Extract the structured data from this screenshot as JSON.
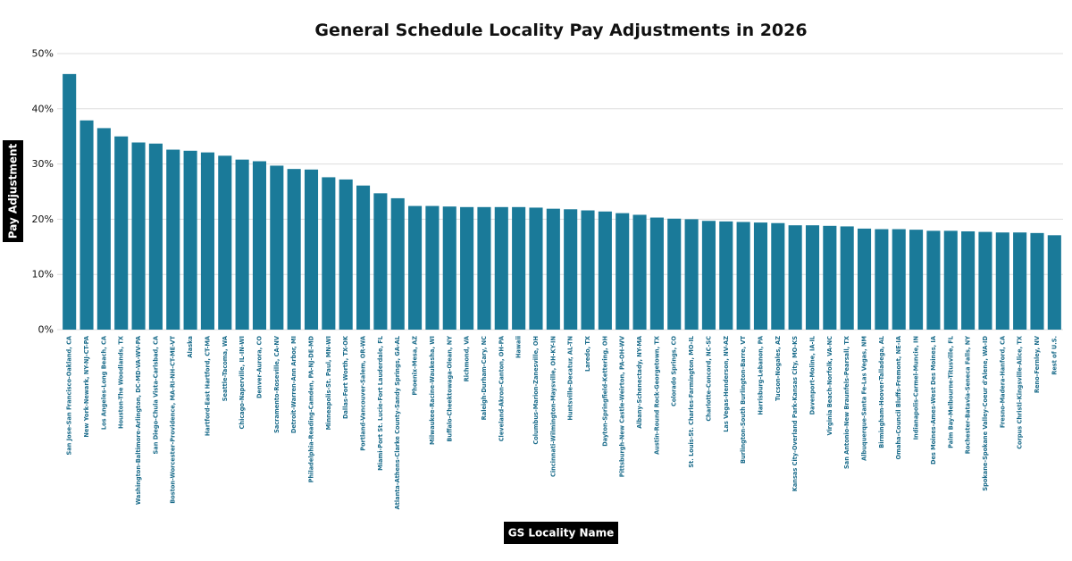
{
  "chart_data": {
    "type": "bar",
    "title": "General Schedule Locality Pay Adjustments in 2026",
    "xlabel": "GS Locality Name",
    "ylabel": "Pay Adjustment",
    "ylim": [
      0,
      50
    ],
    "yticks": [
      0,
      10,
      20,
      30,
      40,
      50
    ],
    "ytick_format": "{v}%",
    "grid": true,
    "colors": {
      "bar": "#1a7a99",
      "tick_label": "#1a6b8a",
      "grid": "#dddddd",
      "label_bg": "#000000"
    },
    "categories": [
      "San Jose-San Francisco-Oakland, CA",
      "New York-Newark, NY-NJ-CT-PA",
      "Los Angeles-Long Beach, CA",
      "Houston-The Woodlands, TX",
      "Washington-Baltimore-Arlington, DC-MD-VA-WV-PA",
      "San Diego-Chula Vista-Carlsbad, CA",
      "Boston-Worcester-Providence, MA-RI-NH-CT-ME-VT",
      "Alaska",
      "Hartford-East Hartford, CT-MA",
      "Seattle-Tacoma, WA",
      "Chicago-Naperville, IL-IN-WI",
      "Denver-Aurora, CO",
      "Sacramento-Roseville, CA-NV",
      "Detroit-Warren-Ann Arbor, MI",
      "Philadelphia-Reading-Camden, PA-NJ-DE-MD",
      "Minneapolis-St. Paul, MN-WI",
      "Dallas-Fort Worth, TX-OK",
      "Portland-Vancouver-Salem, OR-WA",
      "Miami-Port St. Lucie-Fort Lauderdale, FL",
      "Atlanta-Athens-Clarke County-Sandy Springs, GA-AL",
      "Phoenix-Mesa, AZ",
      "Milwaukee-Racine-Waukesha, WI",
      "Buffalo-Cheektowaga-Olean, NY",
      "Richmond, VA",
      "Raleigh-Durham-Cary, NC",
      "Cleveland-Akron-Canton, OH-PA",
      "Hawaii",
      "Columbus-Marion-Zanesville, OH",
      "Cincinnati-Wilmington-Maysville, OH-KY-IN",
      "Huntsville-Decatur, AL-TN",
      "Laredo, TX",
      "Dayton-Springfield-Kettering, OH",
      "Pittsburgh-New Castle-Weirton, PA-OH-WV",
      "Albany-Schenectady, NY-MA",
      "Austin-Round Rock-Georgetown, TX",
      "Colorado Springs, CO",
      "St. Louis-St. Charles-Farmington, MO-IL",
      "Charlotte-Concord, NC-SC",
      "Las Vegas-Henderson, NV-AZ",
      "Burlington-South Burlington-Barre, VT",
      "Harrisburg-Lebanon, PA",
      "Tucson-Nogales, AZ",
      "Kansas City-Overland Park-Kansas City, MO-KS",
      "Davenport-Moline, IA-IL",
      "Virginia Beach-Norfolk, VA-NC",
      "San Antonio-New Braunfels-Pearsall, TX",
      "Albuquerque-Santa Fe-Las Vegas, NM",
      "Birmingham-Hoover-Talladega, AL",
      "Omaha-Council Bluffs-Fremont, NE-IA",
      "Indianapolis-Carmel-Muncie, IN",
      "Des Moines-Ames-West Des Moines, IA",
      "Palm Bay-Melbourne-Titusville, FL",
      "Rochester-Batavia-Seneca Falls, NY",
      "Spokane-Spokane Valley-Coeur d'Alene, WA-ID",
      "Fresno-Madera-Hanford, CA",
      "Corpus Christi-Kingsville-Alice, TX",
      "Reno-Fernley, NV",
      "Rest of U.S."
    ],
    "values": [
      46.3,
      37.9,
      36.5,
      35.0,
      33.9,
      33.7,
      32.6,
      32.4,
      32.1,
      31.5,
      30.8,
      30.5,
      29.7,
      29.1,
      29.0,
      27.6,
      27.2,
      26.1,
      24.7,
      23.8,
      22.4,
      22.4,
      22.3,
      22.2,
      22.2,
      22.2,
      22.2,
      22.1,
      21.9,
      21.8,
      21.6,
      21.4,
      21.1,
      20.8,
      20.3,
      20.1,
      20.0,
      19.7,
      19.6,
      19.5,
      19.4,
      19.3,
      18.9,
      18.9,
      18.8,
      18.7,
      18.3,
      18.2,
      18.2,
      18.1,
      17.9,
      17.9,
      17.8,
      17.7,
      17.6,
      17.6,
      17.5,
      17.1
    ]
  }
}
